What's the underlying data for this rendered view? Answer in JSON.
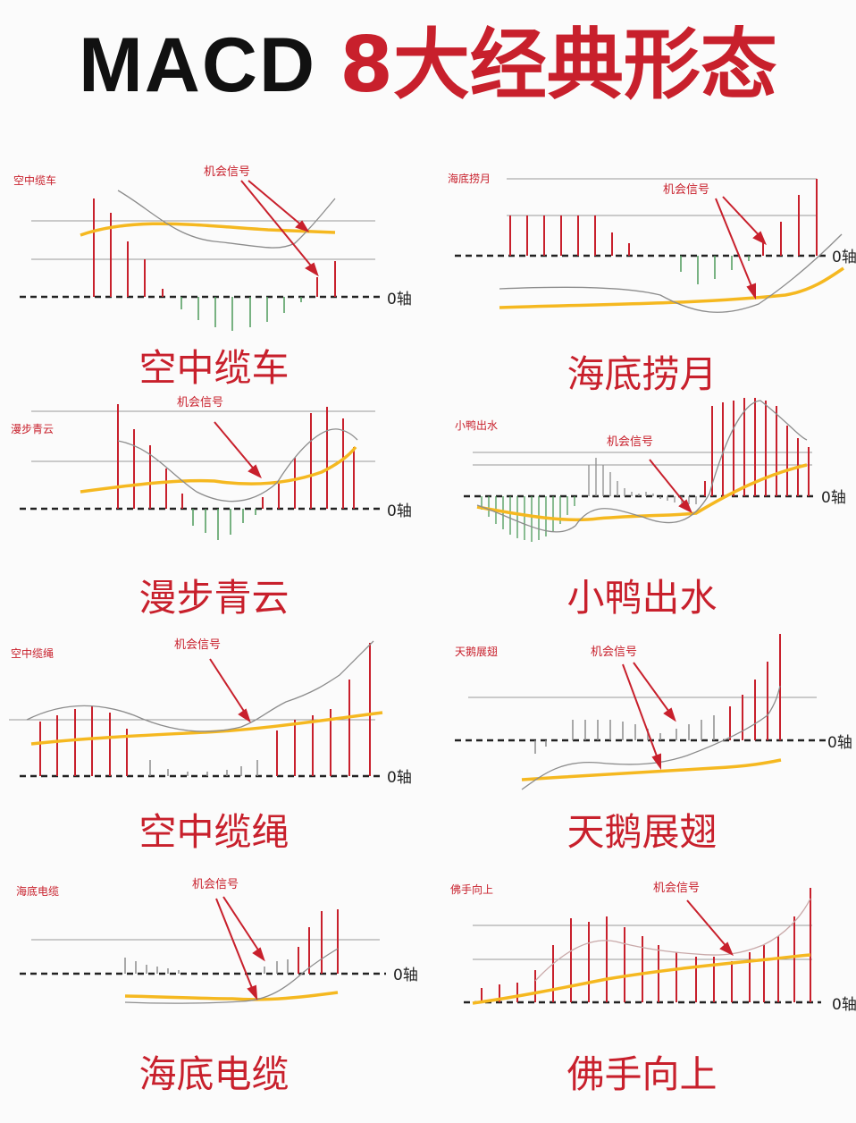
{
  "title": {
    "main": "MACD",
    "accent": "8大经典形态"
  },
  "colors": {
    "red": "#c8202c",
    "yellow": "#f5b820",
    "green": "#4c9a5a",
    "grey": "#8c8c8c",
    "dark": "#222222"
  },
  "signal_label": "机会信号",
  "zero_label": "0轴",
  "panels": [
    {
      "name": "空中缆车",
      "caption": "空中缆车"
    },
    {
      "name": "海底捞月",
      "caption": "海底捞月"
    },
    {
      "name": "漫步青云",
      "caption": "漫步青云"
    },
    {
      "name": "小鸭出水",
      "caption": "小鸭出水"
    },
    {
      "name": "空中缆绳",
      "caption": "空中缆绳"
    },
    {
      "name": "天鹅展翅",
      "caption": "天鹅展翅"
    },
    {
      "name": "海底电缆",
      "caption": "海底电缆"
    },
    {
      "name": "佛手向上",
      "caption": "佛手向上"
    }
  ]
}
